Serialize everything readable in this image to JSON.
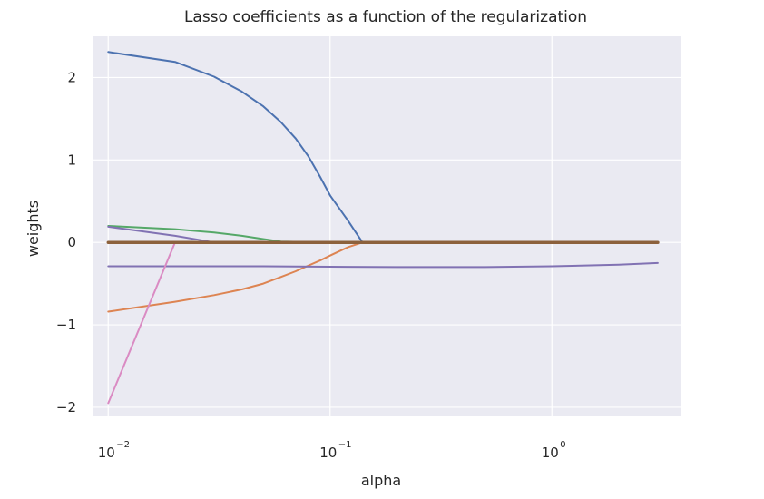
{
  "chart_data": {
    "type": "line",
    "title": "Lasso coefficients as a function of the regularization",
    "xlabel": "alpha",
    "ylabel": "weights",
    "x_scale": "log",
    "xlim": [
      0.0085,
      3.8
    ],
    "ylim": [
      -2.1,
      2.5
    ],
    "grid": true,
    "background": "#eaeaf2",
    "x_ticks": [
      {
        "value": 0.01,
        "base": "10",
        "exponent": "−2"
      },
      {
        "value": 0.1,
        "base": "10",
        "exponent": "−1"
      },
      {
        "value": 1,
        "base": "10",
        "exponent": "0"
      }
    ],
    "y_ticks": [
      {
        "value": 2,
        "label": "2"
      },
      {
        "value": 1,
        "label": "1"
      },
      {
        "value": 0,
        "label": "0"
      },
      {
        "value": -1,
        "label": "−1"
      },
      {
        "value": -2,
        "label": "−2"
      }
    ],
    "series": [
      {
        "color": "#4c72b0",
        "x": [
          0.01,
          0.02,
          0.03,
          0.04,
          0.05,
          0.06,
          0.07,
          0.08,
          0.09,
          0.1,
          0.12,
          0.14,
          0.2,
          0.5,
          1,
          3
        ],
        "y": [
          2.31,
          2.19,
          2.01,
          1.83,
          1.65,
          1.46,
          1.26,
          1.04,
          0.8,
          0.57,
          0.27,
          0.0,
          0.0,
          0.0,
          0.0,
          0.0
        ]
      },
      {
        "color": "#dd8452",
        "x": [
          0.01,
          0.02,
          0.03,
          0.04,
          0.05,
          0.06,
          0.07,
          0.08,
          0.09,
          0.1,
          0.12,
          0.14,
          0.2,
          0.5,
          1,
          3
        ],
        "y": [
          -0.84,
          -0.72,
          -0.64,
          -0.57,
          -0.5,
          -0.42,
          -0.35,
          -0.28,
          -0.22,
          -0.16,
          -0.06,
          0.0,
          0.0,
          0.0,
          0.0,
          0.0
        ]
      },
      {
        "color": "#55a868",
        "x": [
          0.01,
          0.02,
          0.03,
          0.04,
          0.05,
          0.06,
          0.1,
          0.5,
          1,
          3
        ],
        "y": [
          0.2,
          0.16,
          0.12,
          0.08,
          0.04,
          0.01,
          0.0,
          0.0,
          0.0,
          0.0
        ]
      },
      {
        "color": "#c44e52",
        "x": [
          0.01,
          0.1,
          0.5,
          1,
          3
        ],
        "y": [
          0.0,
          0.0,
          0.0,
          0.0,
          0.0
        ]
      },
      {
        "color": "#8172b3",
        "x": [
          0.01,
          0.02,
          0.05,
          0.1,
          0.2,
          0.5,
          1,
          2,
          3
        ],
        "y": [
          -0.29,
          -0.29,
          -0.29,
          -0.295,
          -0.3,
          -0.3,
          -0.29,
          -0.27,
          -0.25
        ]
      },
      {
        "color": "#8172b3",
        "x": [
          0.01,
          0.02,
          0.03,
          0.1,
          1,
          3
        ],
        "y": [
          0.19,
          0.08,
          0.0,
          0.0,
          0.0,
          0.0
        ]
      },
      {
        "color": "#da8bc3",
        "x": [
          0.01,
          0.02,
          0.1,
          1,
          3
        ],
        "y": [
          -1.95,
          0.0,
          0.0,
          0.0,
          0.0
        ]
      },
      {
        "color": "#8c613c",
        "x": [
          0.01,
          0.1,
          1,
          3
        ],
        "y": [
          0.0,
          0.0,
          0.0,
          0.0
        ],
        "width": 3.5
      }
    ]
  }
}
